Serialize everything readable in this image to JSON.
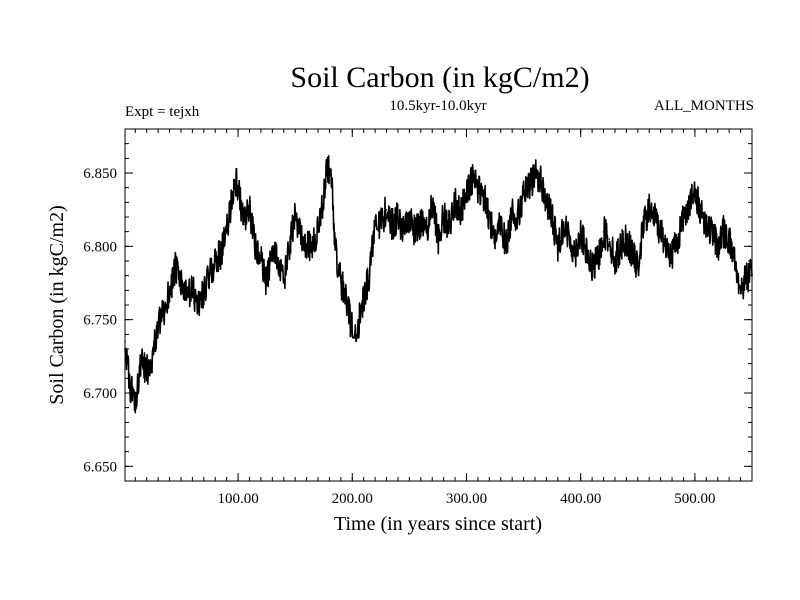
{
  "chart_data": {
    "type": "line",
    "title": "Soil Carbon (in kgC/m2)",
    "subtitle": "10.5kyr-10.0kyr",
    "left_label": "Expt = tejxh",
    "right_label": "ALL_MONTHS",
    "xlabel": "Time (in years since start)",
    "ylabel": "Soil Carbon (in kgC/m2)",
    "xlim": [
      1,
      550
    ],
    "ylim": [
      6.64,
      6.88
    ],
    "x_ticks": [
      {
        "value": 100,
        "label": "100.00"
      },
      {
        "value": 200,
        "label": "200.00"
      },
      {
        "value": 300,
        "label": "300.00"
      },
      {
        "value": 400,
        "label": "400.00"
      },
      {
        "value": 500,
        "label": "500.00"
      }
    ],
    "y_ticks": [
      {
        "value": 6.65,
        "label": "6.650"
      },
      {
        "value": 6.7,
        "label": "6.700"
      },
      {
        "value": 6.75,
        "label": "6.750"
      },
      {
        "value": 6.8,
        "label": "6.800"
      },
      {
        "value": 6.85,
        "label": "6.850"
      }
    ],
    "series": [
      {
        "name": "Soil Carbon",
        "color": "#000000",
        "x": [
          1,
          5,
          10,
          15,
          20,
          25,
          30,
          35,
          40,
          45,
          50,
          55,
          60,
          65,
          70,
          75,
          80,
          85,
          90,
          95,
          98,
          100,
          105,
          110,
          115,
          120,
          125,
          130,
          135,
          140,
          145,
          150,
          155,
          160,
          165,
          170,
          175,
          178,
          182,
          185,
          190,
          195,
          198,
          202,
          205,
          210,
          215,
          220,
          225,
          230,
          235,
          240,
          245,
          250,
          255,
          260,
          265,
          270,
          275,
          280,
          285,
          290,
          295,
          300,
          305,
          310,
          315,
          320,
          325,
          330,
          335,
          340,
          345,
          350,
          355,
          360,
          365,
          370,
          375,
          380,
          385,
          390,
          395,
          400,
          405,
          410,
          415,
          420,
          425,
          430,
          435,
          440,
          445,
          450,
          455,
          460,
          465,
          470,
          475,
          480,
          485,
          490,
          495,
          500,
          505,
          510,
          515,
          520,
          525,
          530,
          535,
          540,
          545,
          550
        ],
        "y": [
          6.735,
          6.705,
          6.695,
          6.72,
          6.715,
          6.725,
          6.745,
          6.755,
          6.77,
          6.785,
          6.775,
          6.765,
          6.77,
          6.76,
          6.77,
          6.78,
          6.79,
          6.795,
          6.81,
          6.835,
          6.845,
          6.84,
          6.815,
          6.825,
          6.8,
          6.79,
          6.775,
          6.8,
          6.79,
          6.775,
          6.8,
          6.82,
          6.81,
          6.8,
          6.8,
          6.81,
          6.835,
          6.855,
          6.845,
          6.8,
          6.775,
          6.765,
          6.75,
          6.74,
          6.745,
          6.765,
          6.78,
          6.82,
          6.815,
          6.825,
          6.815,
          6.82,
          6.81,
          6.82,
          6.81,
          6.815,
          6.81,
          6.83,
          6.805,
          6.82,
          6.815,
          6.83,
          6.825,
          6.835,
          6.845,
          6.84,
          6.835,
          6.82,
          6.805,
          6.815,
          6.8,
          6.825,
          6.82,
          6.835,
          6.84,
          6.85,
          6.845,
          6.83,
          6.82,
          6.8,
          6.815,
          6.805,
          6.795,
          6.81,
          6.795,
          6.785,
          6.79,
          6.81,
          6.805,
          6.79,
          6.8,
          6.805,
          6.795,
          6.785,
          6.815,
          6.825,
          6.82,
          6.81,
          6.8,
          6.795,
          6.805,
          6.82,
          6.83,
          6.835,
          6.825,
          6.815,
          6.81,
          6.8,
          6.81,
          6.805,
          6.79,
          6.77,
          6.78,
          6.78
        ]
      }
    ]
  }
}
